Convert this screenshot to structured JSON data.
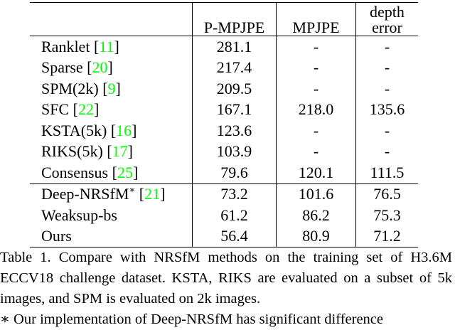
{
  "table": {
    "header": [
      "",
      "P-MPJPE",
      "MPJPE",
      "depth error"
    ],
    "groups": [
      [
        {
          "name": "Ranklet",
          "ref": "11",
          "cells": [
            "281.1",
            "-",
            "-"
          ]
        },
        {
          "name": "Sparse",
          "ref": "20",
          "cells": [
            "217.4",
            "-",
            "-"
          ]
        },
        {
          "name": "SPM(2k)",
          "ref": "9",
          "cells": [
            "209.5",
            "-",
            "-"
          ]
        },
        {
          "name": "SFC",
          "ref": "22",
          "cells": [
            "167.1",
            "218.0",
            "135.6"
          ]
        },
        {
          "name": "KSTA(5k)",
          "ref": "16",
          "cells": [
            "123.6",
            "-",
            "-"
          ]
        },
        {
          "name": "RIKS(5k)",
          "ref": "17",
          "cells": [
            "103.9",
            "-",
            "-"
          ]
        },
        {
          "name": "Consensus",
          "ref": "25",
          "cells": [
            "79.6",
            "120.1",
            "111.5"
          ]
        }
      ],
      [
        {
          "name": "Deep-NRSfM",
          "sup": "∗",
          "ref": "21",
          "cells": [
            "73.2",
            "101.6",
            "76.5"
          ]
        },
        {
          "name": "Weaksup-bs",
          "cells": [
            "61.2",
            "86.2",
            "75.3"
          ]
        },
        {
          "name": "Ours",
          "cells": [
            "56.4",
            "80.9",
            "71.2"
          ]
        }
      ]
    ]
  },
  "caption": [
    "Table 1. Compare with NRSfM methods on the training set of H3.6M ECCV18 challenge dataset. KSTA, RIKS are evaluated on a subset of 5k images, and SPM is evaluated on 2k images.",
    "∗ Our implementation of Deep-NRSfM has significant difference"
  ]
}
